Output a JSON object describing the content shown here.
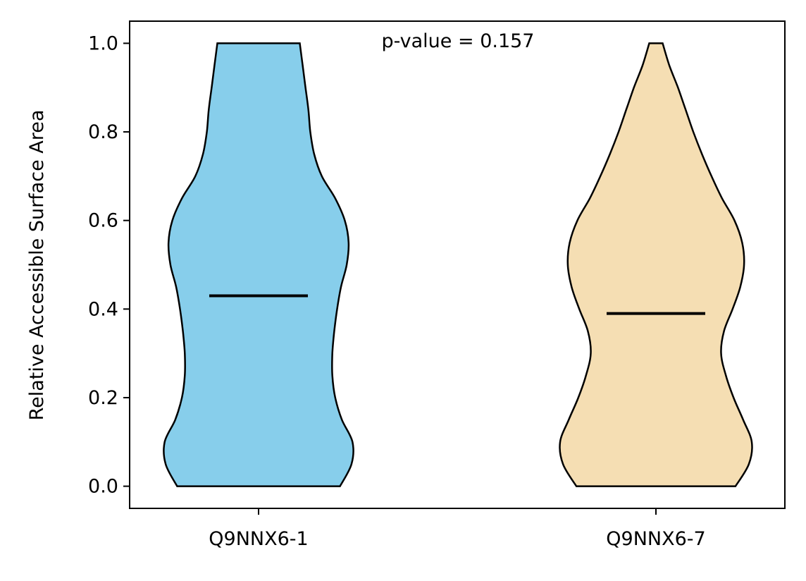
{
  "chart_data": {
    "type": "violin",
    "title": "",
    "xlabel": "",
    "ylabel": "Relative Accessible Surface Area",
    "ylim": [
      -0.05,
      1.05
    ],
    "yticks": [
      "0.0",
      "0.2",
      "0.4",
      "0.6",
      "0.8",
      "1.0"
    ],
    "categories": [
      "Q9NNX6-1",
      "Q9NNX6-7"
    ],
    "annotation": "p-value = 0.157",
    "grid": false,
    "series": [
      {
        "category": "Q9NNX6-1",
        "color": "#87CEEB",
        "median": 0.43,
        "min": 0.0,
        "max": 1.0,
        "density_profile": [
          [
            0.0,
            0.85
          ],
          [
            0.05,
            0.97
          ],
          [
            0.1,
            0.98
          ],
          [
            0.15,
            0.87
          ],
          [
            0.2,
            0.8
          ],
          [
            0.25,
            0.77
          ],
          [
            0.3,
            0.77
          ],
          [
            0.35,
            0.79
          ],
          [
            0.4,
            0.82
          ],
          [
            0.45,
            0.86
          ],
          [
            0.5,
            0.92
          ],
          [
            0.55,
            0.94
          ],
          [
            0.6,
            0.9
          ],
          [
            0.65,
            0.8
          ],
          [
            0.7,
            0.66
          ],
          [
            0.75,
            0.58
          ],
          [
            0.8,
            0.54
          ],
          [
            0.85,
            0.52
          ],
          [
            0.9,
            0.49
          ],
          [
            0.95,
            0.46
          ],
          [
            1.0,
            0.43
          ]
        ]
      },
      {
        "category": "Q9NNX6-7",
        "color": "#F5DEB3",
        "median": 0.39,
        "min": 0.0,
        "max": 1.0,
        "density_profile": [
          [
            0.0,
            0.83
          ],
          [
            0.05,
            0.97
          ],
          [
            0.1,
            1.0
          ],
          [
            0.15,
            0.91
          ],
          [
            0.2,
            0.81
          ],
          [
            0.25,
            0.73
          ],
          [
            0.3,
            0.68
          ],
          [
            0.35,
            0.71
          ],
          [
            0.4,
            0.8
          ],
          [
            0.45,
            0.88
          ],
          [
            0.5,
            0.92
          ],
          [
            0.55,
            0.9
          ],
          [
            0.6,
            0.82
          ],
          [
            0.65,
            0.69
          ],
          [
            0.7,
            0.58
          ],
          [
            0.75,
            0.48
          ],
          [
            0.8,
            0.39
          ],
          [
            0.85,
            0.31
          ],
          [
            0.9,
            0.23
          ],
          [
            0.95,
            0.14
          ],
          [
            1.0,
            0.07
          ]
        ]
      }
    ]
  }
}
